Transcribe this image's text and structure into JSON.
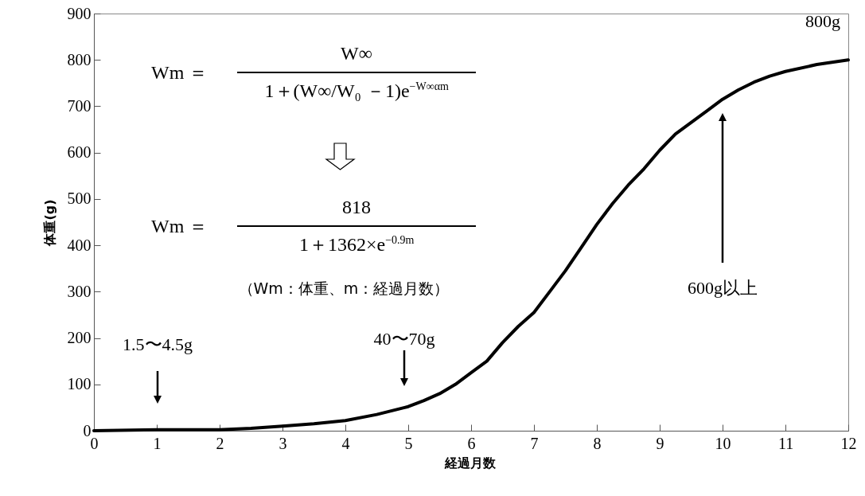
{
  "chart_data": {
    "type": "line",
    "xlabel": "経過月数",
    "ylabel": "体重(g)",
    "x": [
      0,
      1,
      2,
      2.5,
      3,
      3.5,
      4,
      4.5,
      5,
      5.25,
      5.5,
      5.75,
      6,
      6.25,
      6.5,
      6.75,
      7,
      7.25,
      7.5,
      7.75,
      8,
      8.25,
      8.5,
      8.75,
      9,
      9.25,
      9.5,
      9.75,
      10,
      10.25,
      10.5,
      10.75,
      11,
      11.5,
      12
    ],
    "series": [
      {
        "color": "#000000",
        "values": [
          0,
          2,
          2,
          5,
          10,
          15,
          22,
          35,
          52,
          65,
          80,
          100,
          125,
          150,
          190,
          225,
          255,
          300,
          345,
          395,
          445,
          490,
          530,
          565,
          605,
          640,
          665,
          690,
          715,
          735,
          752,
          765,
          775,
          790,
          800
        ]
      }
    ],
    "xlim": [
      0,
      12
    ],
    "xticks": [
      0,
      1,
      2,
      3,
      4,
      5,
      6,
      7,
      8,
      9,
      10,
      11,
      12
    ],
    "ylim": [
      0,
      900
    ],
    "yticks": [
      0,
      100,
      200,
      300,
      400,
      500,
      600,
      700,
      800,
      900
    ],
    "grid": false,
    "marker": "none",
    "line_style": "solid",
    "annotations": [
      "Wm ＝",
      "W∞",
      "1＋(W∞/W₀ －1)e$^{−W∞αm}$",
      "Wm ＝",
      "818",
      "1＋1362×e$^{−0.9m}$",
      "（Wm：体重、m：経過月数）",
      "1.5〜4.5g",
      "40〜70g",
      "600g以上",
      "800g"
    ]
  }
}
